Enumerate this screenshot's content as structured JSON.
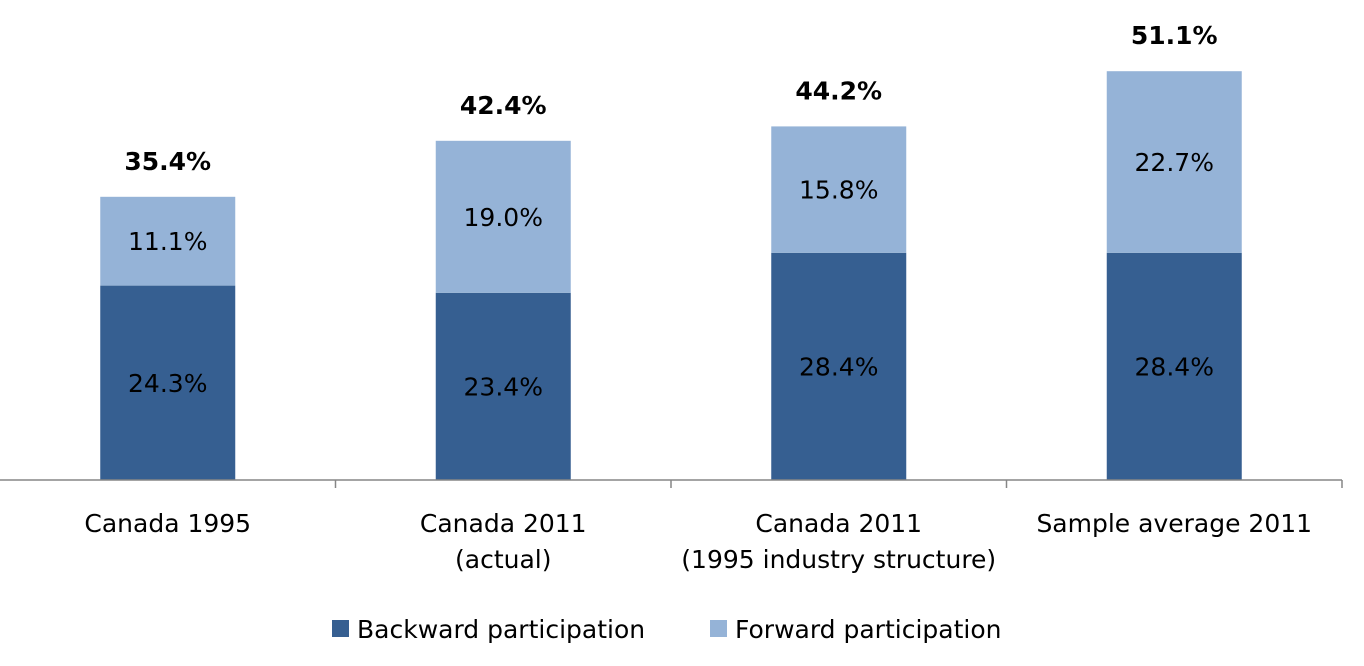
{
  "colors": {
    "backward": "#365F91",
    "forward": "#95B3D7",
    "axis": "#868686"
  },
  "chart_data": {
    "type": "bar",
    "stacked": true,
    "categories": [
      [
        "Canada 1995"
      ],
      [
        "Canada 2011",
        "(actual)"
      ],
      [
        "Canada 2011",
        "(1995 industry structure)"
      ],
      [
        "Sample average 2011"
      ]
    ],
    "series": [
      {
        "name": "Backward participation",
        "values": [
          24.3,
          23.4,
          28.4,
          28.4
        ],
        "labels": [
          "24.3%",
          "23.4%",
          "28.4%",
          "28.4%"
        ]
      },
      {
        "name": "Forward participation",
        "values": [
          11.1,
          19.0,
          15.8,
          22.7
        ],
        "labels": [
          "11.1%",
          "19.0%",
          "15.8%",
          "22.7%"
        ]
      }
    ],
    "totals": [
      35.4,
      42.4,
      44.2,
      51.1
    ],
    "total_labels": [
      "35.4%",
      "42.4%",
      "44.2%",
      "51.1%"
    ],
    "ylim": [
      0,
      55
    ],
    "grid": false,
    "legend_position": "bottom"
  }
}
